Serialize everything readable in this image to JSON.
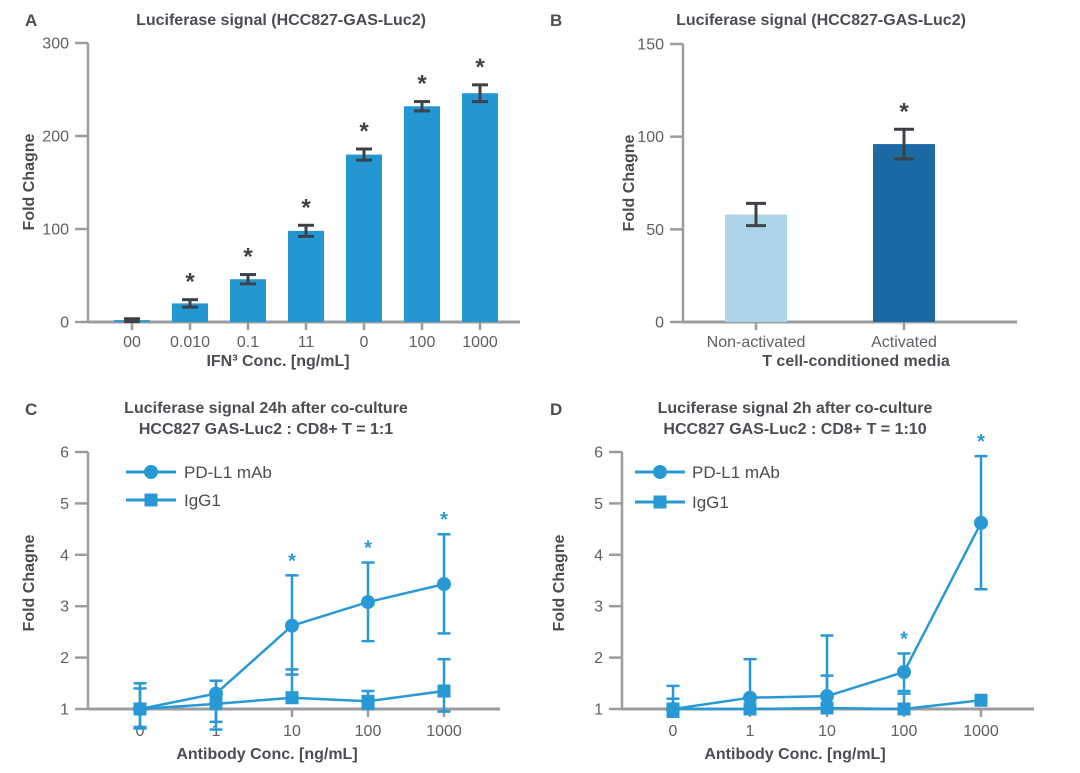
{
  "sig_symbol": "*",
  "colors": {
    "background": "#ffffff",
    "bar_blue": "#2496d2",
    "light_blue": "#abd4e6",
    "dark_blue": "#1c6aa4",
    "line_blue": "#2899d4",
    "axis_gray": "#9c9ca0",
    "error_dark": "#3e4247",
    "text_dark": "#4a4d52",
    "text_gray": "#5d6064"
  },
  "chart_data": [
    {
      "panel_label": "A",
      "type": "bar",
      "title": "Luciferase signal (HCC827-GAS-Luc2)",
      "subtitle": "",
      "ylabel": "Fold Chagne",
      "xlabel": "IFN³ Conc. [ng/mL]",
      "ylim": [
        0,
        300
      ],
      "yticks": [
        0,
        100,
        200,
        300
      ],
      "categories": [
        "00",
        "0.010",
        "0.1",
        "11",
        "0",
        "100",
        "1000"
      ],
      "values": [
        2,
        20,
        46,
        98,
        180,
        232,
        246
      ],
      "errors": [
        1.5,
        4,
        5,
        6,
        6,
        5,
        9
      ],
      "significant": [
        false,
        true,
        true,
        true,
        true,
        true,
        true
      ],
      "bar_colors": [
        "#2496d2",
        "#2496d2",
        "#2496d2",
        "#2496d2",
        "#2496d2",
        "#2496d2",
        "#2496d2"
      ]
    },
    {
      "panel_label": "B",
      "type": "bar",
      "title": "Luciferase signal (HCC827-GAS-Luc2)",
      "subtitle": "",
      "ylabel": "Fold Chagne",
      "xlabel": "T cell-conditioned media",
      "ylim": [
        0,
        150
      ],
      "yticks": [
        0,
        50,
        100,
        150
      ],
      "categories": [
        "Non-activated",
        "Activated"
      ],
      "values": [
        58,
        96
      ],
      "errors": [
        6,
        8
      ],
      "significant": [
        false,
        true
      ],
      "bar_colors": [
        "#abd4e6",
        "#1c6aa4"
      ]
    },
    {
      "panel_label": "C",
      "type": "line",
      "title": "Luciferase signal 24h after co-culture",
      "subtitle": "HCC827 GAS-Luc2 : CD8+ T = 1:1",
      "ylabel": "Fold Chagne",
      "xlabel": "Antibody Conc. [ng/mL]",
      "ylim": [
        1,
        6
      ],
      "yticks": [
        1,
        2,
        3,
        4,
        5,
        6
      ],
      "categories": [
        "0",
        "1",
        "10",
        "100",
        "1000"
      ],
      "legend_position": "top-left",
      "series": [
        {
          "name": "PD-L1 mAb",
          "marker": "circle",
          "values": [
            1.0,
            1.3,
            2.62,
            3.08,
            3.43
          ],
          "err_lo": [
            0.35,
            0.55,
            0.95,
            0.76,
            0.96
          ],
          "err_hi": [
            0.5,
            0.25,
            0.98,
            0.77,
            0.97
          ],
          "significant": [
            false,
            false,
            true,
            true,
            true
          ]
        },
        {
          "name": "IgG1",
          "marker": "square",
          "values": [
            1.0,
            1.1,
            1.22,
            1.15,
            1.35
          ],
          "err_lo": [
            0.38,
            0.5,
            0.1,
            0.15,
            0.4
          ],
          "err_hi": [
            0.4,
            0.45,
            0.55,
            0.2,
            0.62
          ],
          "significant": [
            false,
            false,
            false,
            false,
            false
          ]
        }
      ]
    },
    {
      "panel_label": "D",
      "type": "line",
      "title": "Luciferase signal 2h after co-culture",
      "subtitle": "HCC827 GAS-Luc2 : CD8+ T = 1:10",
      "ylabel": "Fold Chagne",
      "xlabel": "Antibody Conc. [ng/mL]",
      "ylim": [
        1,
        6
      ],
      "yticks": [
        1,
        2,
        3,
        4,
        5,
        6
      ],
      "categories": [
        "0",
        "1",
        "10",
        "100",
        "1000"
      ],
      "legend_position": "top-left",
      "series": [
        {
          "name": "PD-L1 mAb",
          "marker": "circle",
          "values": [
            1.0,
            1.22,
            1.25,
            1.72,
            4.62
          ],
          "err_lo": [
            0.15,
            0.2,
            0.22,
            0.37,
            1.29
          ],
          "err_hi": [
            0.45,
            0.75,
            1.18,
            0.36,
            1.3
          ],
          "significant": [
            false,
            false,
            false,
            true,
            true
          ]
        },
        {
          "name": "IgG1",
          "marker": "square",
          "values": [
            1.0,
            1.0,
            1.02,
            1.0,
            1.17
          ],
          "err_lo": [
            0.1,
            0,
            0,
            0,
            0
          ],
          "err_hi": [
            0.2,
            0,
            0.63,
            0.3,
            0
          ],
          "significant": [
            false,
            false,
            false,
            false,
            false
          ]
        }
      ]
    }
  ]
}
